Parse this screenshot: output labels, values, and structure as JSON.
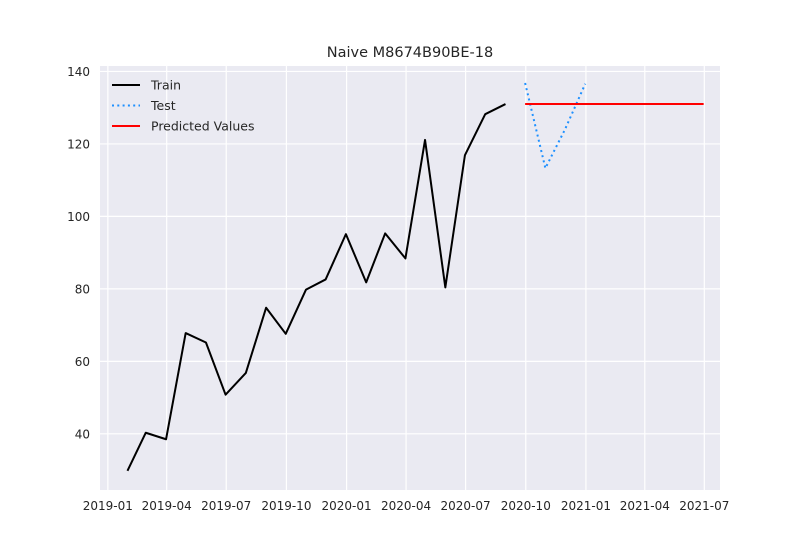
{
  "chart_data": {
    "type": "line",
    "title": "Naive M8674B90BE-18",
    "xlabel": "",
    "ylabel": "",
    "grid": true,
    "legend_position": "top-left",
    "xlim": [
      "2018-12-20",
      "2021-07-25"
    ],
    "ylim": [
      24.5,
      141.5
    ],
    "x_ticks": [
      {
        "date": "2019-01-01",
        "label": "2019-01"
      },
      {
        "date": "2019-04-01",
        "label": "2019-04"
      },
      {
        "date": "2019-07-01",
        "label": "2019-07"
      },
      {
        "date": "2019-10-01",
        "label": "2019-10"
      },
      {
        "date": "2020-01-01",
        "label": "2020-01"
      },
      {
        "date": "2020-04-01",
        "label": "2020-04"
      },
      {
        "date": "2020-07-01",
        "label": "2020-07"
      },
      {
        "date": "2020-10-01",
        "label": "2020-10"
      },
      {
        "date": "2021-01-01",
        "label": "2021-01"
      },
      {
        "date": "2021-04-01",
        "label": "2021-04"
      },
      {
        "date": "2021-07-01",
        "label": "2021-07"
      }
    ],
    "y_ticks": [
      40,
      60,
      80,
      100,
      120,
      140
    ],
    "series": [
      {
        "name": "Train",
        "color": "#000000",
        "style": "solid",
        "x": [
          "2019-01-31",
          "2019-02-28",
          "2019-03-31",
          "2019-04-30",
          "2019-05-31",
          "2019-06-30",
          "2019-07-31",
          "2019-08-31",
          "2019-09-30",
          "2019-10-31",
          "2019-11-30",
          "2019-12-31",
          "2020-01-31",
          "2020-02-29",
          "2020-03-31",
          "2020-04-30",
          "2020-05-31",
          "2020-06-30",
          "2020-07-31",
          "2020-08-31"
        ],
        "values": [
          29.8,
          40.3,
          38.5,
          67.8,
          65.2,
          50.8,
          56.8,
          74.8,
          67.6,
          79.8,
          82.6,
          95.1,
          81.8,
          95.3,
          88.4,
          121.1,
          80.4,
          116.9,
          128.2,
          131.0
        ]
      },
      {
        "name": "Test",
        "color": "#1e90ff",
        "style": "dotted",
        "x": [
          "2020-09-30",
          "2020-10-31",
          "2020-11-30",
          "2020-12-31"
        ],
        "values": [
          136.8,
          113.3,
          124.0,
          136.6
        ]
      },
      {
        "name": "Predicted Values",
        "color": "#ff0000",
        "style": "solid",
        "x": [
          "2020-09-30",
          "2020-10-31",
          "2020-11-30",
          "2020-12-31",
          "2021-01-31",
          "2021-02-28",
          "2021-03-31",
          "2021-04-30",
          "2021-05-31",
          "2021-06-30"
        ],
        "values": [
          131.0,
          131.0,
          131.0,
          131.0,
          131.0,
          131.0,
          131.0,
          131.0,
          131.0,
          131.0
        ]
      }
    ]
  }
}
